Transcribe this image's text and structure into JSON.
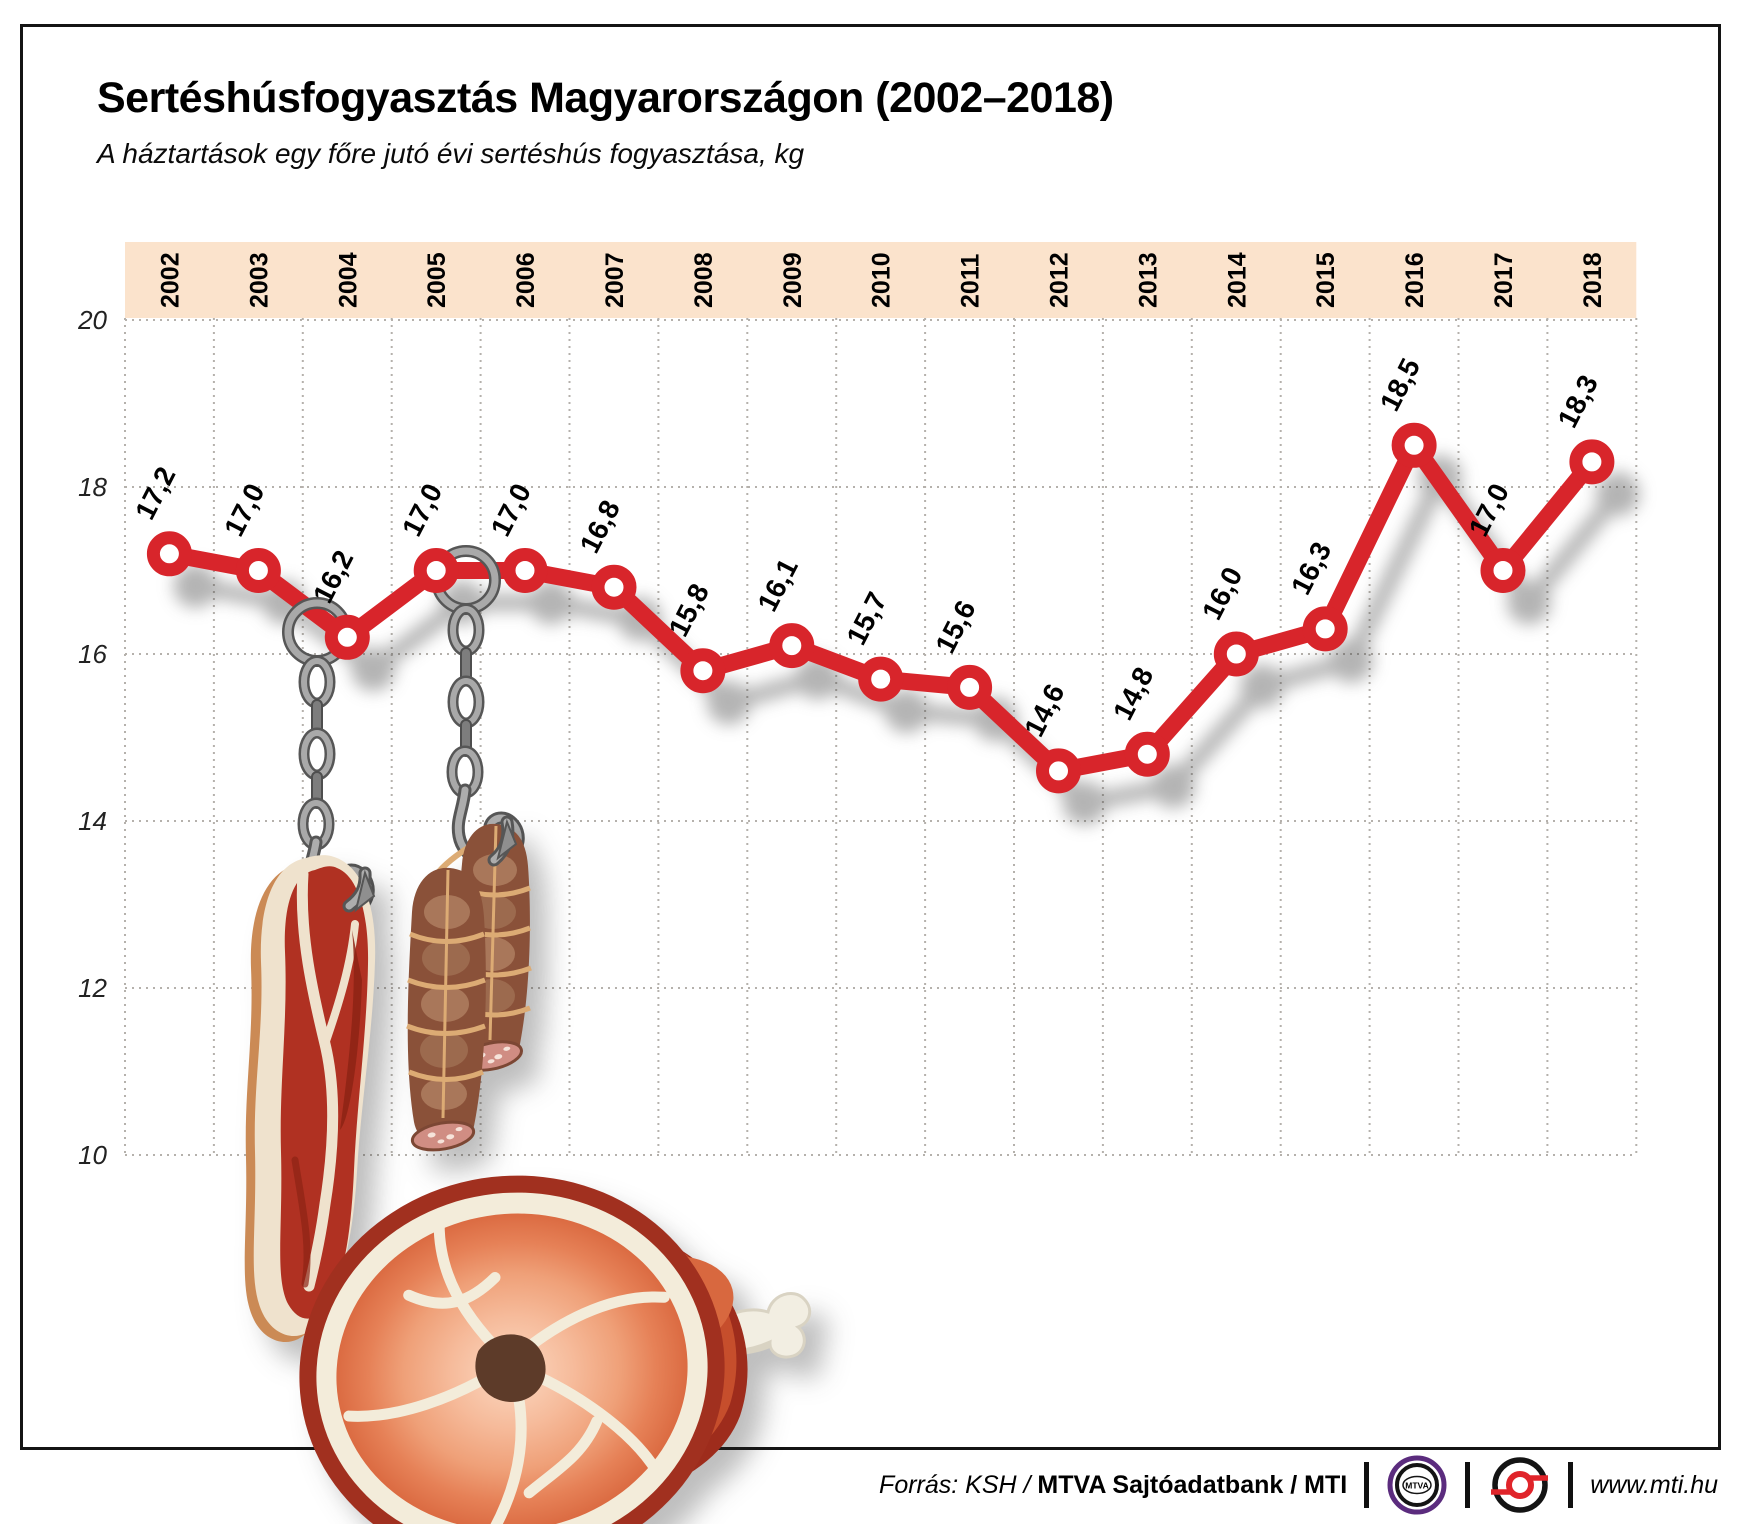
{
  "title": "Sertéshúsfogyasztás Magyarországon (2002–2018)",
  "subtitle": "A háztartások egy főre jutó évi sertéshús fogyasztása, kg",
  "chart_data": {
    "type": "line",
    "title": "Sertéshúsfogyasztás Magyarországon (2002–2018)",
    "categories": [
      "2002",
      "2003",
      "2004",
      "2005",
      "2006",
      "2007",
      "2008",
      "2009",
      "2010",
      "2011",
      "2012",
      "2013",
      "2014",
      "2015",
      "2016",
      "2017",
      "2018"
    ],
    "values": [
      17.2,
      17.0,
      16.2,
      17.0,
      17.0,
      16.8,
      15.8,
      16.1,
      15.7,
      15.6,
      14.6,
      14.8,
      16.0,
      16.3,
      18.5,
      17.0,
      18.3
    ],
    "point_labels": [
      "17,2",
      "17,0",
      "16,2",
      "17,0",
      "17,0",
      "16,8",
      "15,8",
      "16,1",
      "15,7",
      "15,6",
      "14,6",
      "14,8",
      "16,0",
      "16,3",
      "18,5",
      "17,0",
      "18,3"
    ],
    "yticks": [
      20,
      18,
      16,
      14,
      12,
      10
    ],
    "ylim": [
      10,
      20
    ],
    "ylabel": "kg",
    "grid": true,
    "legend_position": "none",
    "line_color": "#d8252b",
    "marker_fill": "#ffffff",
    "band_color": "#fbe3cc",
    "grid_color": "#b5b1ac",
    "label_color": "#000000"
  },
  "footer": {
    "source_prefix": "Forrás: KSH / ",
    "source_bold": "MTVA Sajtóadatbank",
    "source_suffix": " / MTI",
    "mtva_logo_label": "MTVA",
    "website": "www.mti.hu"
  }
}
